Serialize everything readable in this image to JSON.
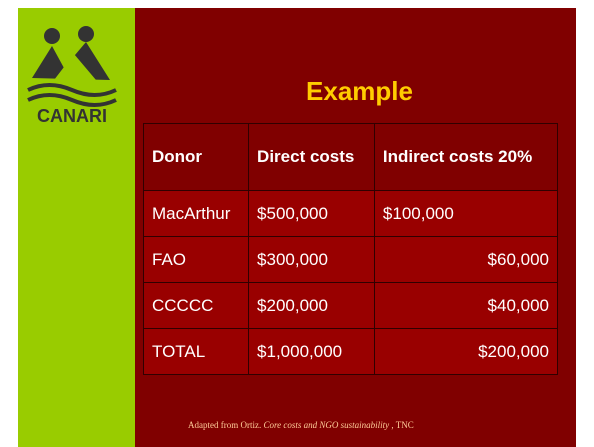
{
  "logo": {
    "text": "CANARI"
  },
  "title": "Example",
  "table": {
    "header": [
      "Donor",
      "Direct costs",
      "Indirect costs 20%"
    ],
    "rows": [
      [
        "MacArthur",
        "$500,000",
        "$100,000"
      ],
      [
        "FAO",
        "$300,000",
        "$60,000"
      ],
      [
        "CCCCC",
        "$200,000",
        "$40,000"
      ],
      [
        "TOTAL",
        "$1,000,000",
        "$200,000"
      ]
    ]
  },
  "footnote": {
    "prefix": "Adapted from Ortiz.",
    "italic": "Core costs and NGO sustainability",
    "suffix": ", TNC"
  }
}
